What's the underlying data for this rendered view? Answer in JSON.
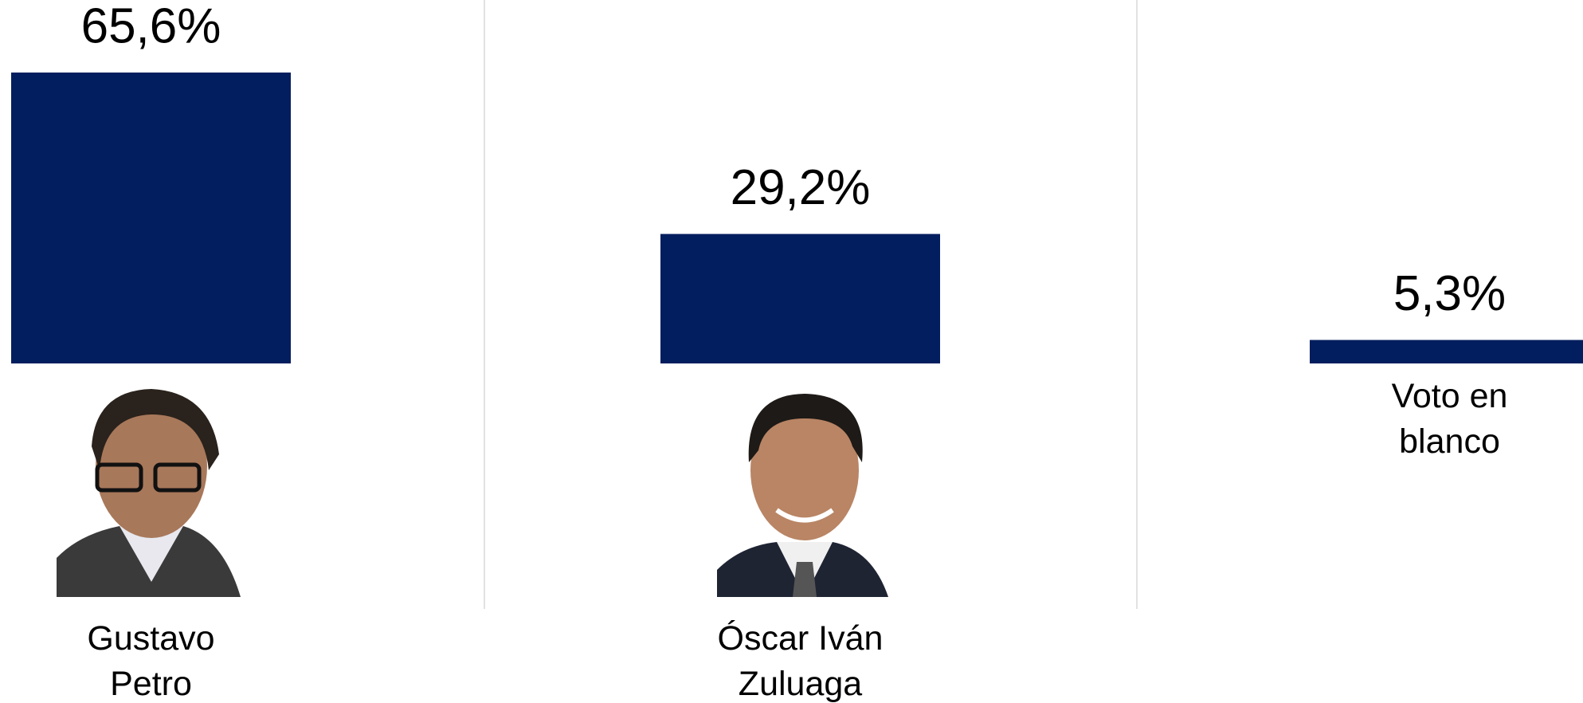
{
  "chart_data": {
    "type": "bar",
    "categories": [
      "Gustavo\nPetro",
      "Óscar Iván\nZuluaga",
      "Voto en\nblanco"
    ],
    "values": [
      65.6,
      29.2,
      5.3
    ],
    "value_labels": [
      "65,6%",
      "29,2%",
      "5,3%"
    ],
    "color": "#031e5e"
  }
}
